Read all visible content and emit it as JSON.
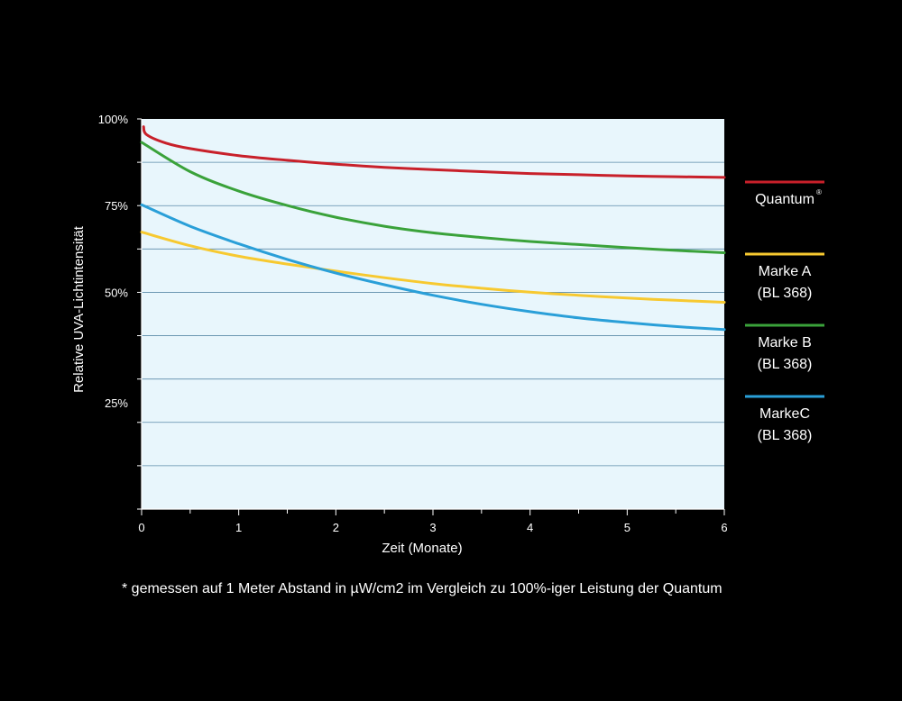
{
  "chart_data": {
    "type": "line",
    "xlabel": "Zeit (Monate)",
    "ylabel": "Relative UVA-Lichtintensität",
    "xlim": [
      0,
      6
    ],
    "ylim": [
      0,
      100
    ],
    "x_ticks": [
      "0",
      "1",
      "2",
      "3",
      "4",
      "5",
      "6"
    ],
    "y_tick_labels": [
      {
        "value": 100,
        "label": "100%"
      },
      {
        "value": 75,
        "label": "75%"
      },
      {
        "value": 50,
        "label": "50%"
      },
      {
        "value": 25,
        "label": "25%"
      }
    ],
    "grid": true,
    "plot_background": "#e8f6fc",
    "legend_position": "right",
    "series": [
      {
        "name": "Quantum",
        "name_sup": "®",
        "label_lines": [
          "Quantum"
        ],
        "color": "#c8202a",
        "points": [
          [
            0.02,
            98
          ],
          [
            0.05,
            96
          ],
          [
            0.25,
            93.8
          ],
          [
            0.5,
            92.4
          ],
          [
            1,
            90.6
          ],
          [
            1.5,
            89.4
          ],
          [
            2,
            88.4
          ],
          [
            2.5,
            87.6
          ],
          [
            3,
            87
          ],
          [
            3.5,
            86.5
          ],
          [
            4,
            86
          ],
          [
            4.5,
            85.7
          ],
          [
            5,
            85.4
          ],
          [
            5.5,
            85.2
          ],
          [
            6,
            85
          ]
        ]
      },
      {
        "name": "Marke A (BL 368)",
        "label_lines": [
          "Marke A",
          "(BL 368)"
        ],
        "color": "#f7c930",
        "points": [
          [
            0,
            71
          ],
          [
            0.5,
            67.5
          ],
          [
            1,
            64.8
          ],
          [
            1.5,
            62.8
          ],
          [
            2,
            61
          ],
          [
            2.5,
            59.3
          ],
          [
            3,
            57.8
          ],
          [
            3.5,
            56.6
          ],
          [
            4,
            55.6
          ],
          [
            4.5,
            54.8
          ],
          [
            5,
            54.1
          ],
          [
            5.5,
            53.5
          ],
          [
            6,
            53
          ]
        ]
      },
      {
        "name": "Marke B (BL 368)",
        "label_lines": [
          "Marke B",
          "(BL 368)"
        ],
        "color": "#3aa23a",
        "points": [
          [
            0,
            94
          ],
          [
            0.5,
            86.5
          ],
          [
            1,
            81.5
          ],
          [
            1.5,
            77.8
          ],
          [
            2,
            74.8
          ],
          [
            2.5,
            72.5
          ],
          [
            3,
            70.8
          ],
          [
            3.5,
            69.6
          ],
          [
            4,
            68.6
          ],
          [
            4.5,
            67.8
          ],
          [
            5,
            67
          ],
          [
            5.5,
            66.3
          ],
          [
            6,
            65.7
          ]
        ]
      },
      {
        "name": "MarkeC (BL 368)",
        "label_lines": [
          "MarkeC",
          "(BL 368)"
        ],
        "color": "#2a9fd8",
        "points": [
          [
            0,
            78
          ],
          [
            0.5,
            72.5
          ],
          [
            1,
            68
          ],
          [
            1.5,
            64
          ],
          [
            2,
            60.5
          ],
          [
            2.5,
            57.5
          ],
          [
            3,
            54.8
          ],
          [
            3.5,
            52.5
          ],
          [
            4,
            50.6
          ],
          [
            4.5,
            49
          ],
          [
            5,
            47.8
          ],
          [
            5.5,
            46.8
          ],
          [
            6,
            46
          ]
        ]
      }
    ]
  },
  "footnote": "* gemessen auf 1 Meter Abstand in µW/cm2 im Vergleich zu 100%-iger Leistung der Quantum"
}
